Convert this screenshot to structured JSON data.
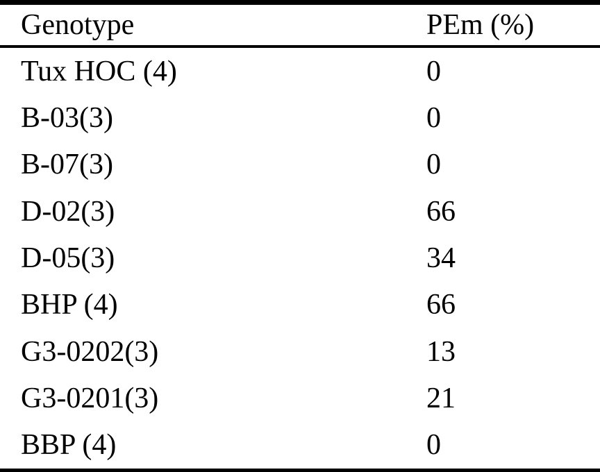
{
  "table": {
    "columns": [
      {
        "key": "genotype",
        "label": "Genotype"
      },
      {
        "key": "pem",
        "label": "PEm (%)"
      }
    ],
    "rows": [
      {
        "genotype": "Tux HOC (4)",
        "pem": "0"
      },
      {
        "genotype": "B-03(3)",
        "pem": "0"
      },
      {
        "genotype": "B-07(3)",
        "pem": "0"
      },
      {
        "genotype": "D-02(3)",
        "pem": "66"
      },
      {
        "genotype": "D-05(3)",
        "pem": "34"
      },
      {
        "genotype": "BHP (4)",
        "pem": "66"
      },
      {
        "genotype": "G3-0202(3)",
        "pem": "13"
      },
      {
        "genotype": "G3-0201(3)",
        "pem": "21"
      },
      {
        "genotype": "BBP (4)",
        "pem": "0"
      }
    ]
  },
  "colors": {
    "background": "#ffffff",
    "text": "#000000",
    "rule": "#000000"
  },
  "chart_data": {
    "type": "table",
    "title": "",
    "columns": [
      "Genotype",
      "PEm (%)"
    ],
    "categories": [
      "Tux HOC (4)",
      "B-03(3)",
      "B-07(3)",
      "D-02(3)",
      "D-05(3)",
      "BHP (4)",
      "G3-0202(3)",
      "G3-0201(3)",
      "BBP (4)"
    ],
    "values": [
      0,
      0,
      0,
      66,
      34,
      66,
      13,
      21,
      0
    ],
    "xlabel": "Genotype",
    "ylabel": "PEm (%)"
  }
}
